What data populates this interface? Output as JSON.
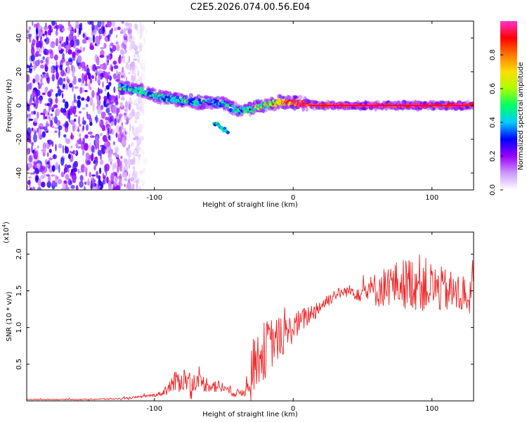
{
  "title": "C2E5.2026.074.00.56.E04",
  "chart_data": [
    {
      "type": "heatmap",
      "title": "C2E5.2026.074.00.56.E04",
      "xlabel": "Height of straight line (km)",
      "ylabel": "Frequency (Hz)",
      "xlim": [
        -192,
        130
      ],
      "ylim": [
        -50,
        50
      ],
      "xticks": [
        -100,
        0,
        100
      ],
      "xtick_labels": [
        "-100",
        "0",
        "100"
      ],
      "yticks": [
        -40,
        -20,
        0,
        20,
        40
      ],
      "ytick_labels": [
        "-40",
        "-20",
        "0",
        "20",
        "40"
      ],
      "noise_region_x": [
        -192,
        -112
      ],
      "ridge": {
        "x": [
          -125,
          -110,
          -100,
          -90,
          -80,
          -70,
          -60,
          -50,
          -40,
          -30,
          -20,
          -10,
          0,
          10,
          20,
          40,
          60,
          80,
          100,
          130
        ],
        "y": [
          11,
          9,
          6,
          4,
          3,
          2,
          2,
          1,
          -3,
          -2,
          0,
          2,
          2,
          1,
          0,
          0,
          0,
          0,
          0,
          0
        ],
        "amplitude": [
          0.45,
          0.45,
          0.4,
          0.4,
          0.42,
          0.4,
          0.38,
          0.35,
          0.4,
          0.45,
          0.55,
          0.7,
          0.85,
          0.9,
          0.95,
          0.98,
          0.97,
          0.95,
          0.95,
          0.95
        ]
      },
      "side_blob": {
        "x": [
          -57,
          -47
        ],
        "y": [
          -10,
          -16
        ]
      },
      "colorbar": {
        "label": "Normalized spectral amplitude",
        "range": [
          0,
          1
        ],
        "ticks": [
          0.0,
          0.2,
          0.4,
          0.6,
          0.8
        ],
        "tick_labels": [
          "0.0",
          "0.2",
          "0.4",
          "0.6",
          "0.8"
        ],
        "colors": [
          "#ffffff",
          "#cc99ff",
          "#9900ff",
          "#0000ff",
          "#00ccff",
          "#00ff66",
          "#aaff00",
          "#ffdd00",
          "#ff7700",
          "#ff0000",
          "#ff33cc"
        ]
      }
    },
    {
      "type": "line",
      "xlabel": "Height of straight line (km)",
      "ylabel": "SNR (10 * v/v)",
      "scale_label": "(x10",
      "scale_exponent": "4",
      "xlim": [
        -192,
        130
      ],
      "ylim": [
        0,
        2.3
      ],
      "xticks": [
        -100,
        0,
        100
      ],
      "xtick_labels": [
        "-100",
        "0",
        "100"
      ],
      "yticks": [
        0.5,
        1.0,
        1.5,
        2.0
      ],
      "ytick_labels": [
        "0.5",
        "1.0",
        "1.5",
        "2.0"
      ],
      "series": [
        {
          "name": "SNR",
          "color": "#ee2222",
          "x": [
            -192,
            -150,
            -125,
            -112,
            -100,
            -95,
            -90,
            -85,
            -80,
            -75,
            -70,
            -65,
            -60,
            -55,
            -50,
            -45,
            -40,
            -35,
            -30,
            -25,
            -20,
            -15,
            -10,
            -5,
            0,
            10,
            20,
            30,
            40,
            50,
            60,
            70,
            80,
            90,
            100,
            110,
            120,
            130
          ],
          "mean": [
            0.02,
            0.02,
            0.03,
            0.05,
            0.08,
            0.1,
            0.18,
            0.25,
            0.3,
            0.28,
            0.26,
            0.24,
            0.22,
            0.2,
            0.18,
            0.12,
            0.1,
            0.14,
            0.45,
            0.6,
            0.7,
            0.8,
            0.85,
            0.9,
            1.0,
            1.15,
            1.3,
            1.45,
            1.5,
            1.48,
            1.52,
            1.58,
            1.6,
            1.62,
            1.55,
            1.5,
            1.45,
            1.45
          ],
          "amp": [
            0.005,
            0.008,
            0.01,
            0.015,
            0.02,
            0.03,
            0.1,
            0.15,
            0.18,
            0.15,
            0.12,
            0.12,
            0.1,
            0.1,
            0.08,
            0.05,
            0.06,
            0.08,
            0.35,
            0.4,
            0.4,
            0.35,
            0.3,
            0.25,
            0.2,
            0.15,
            0.12,
            0.08,
            0.08,
            0.15,
            0.25,
            0.3,
            0.35,
            0.4,
            0.35,
            0.3,
            0.3,
            0.3
          ]
        }
      ]
    }
  ]
}
